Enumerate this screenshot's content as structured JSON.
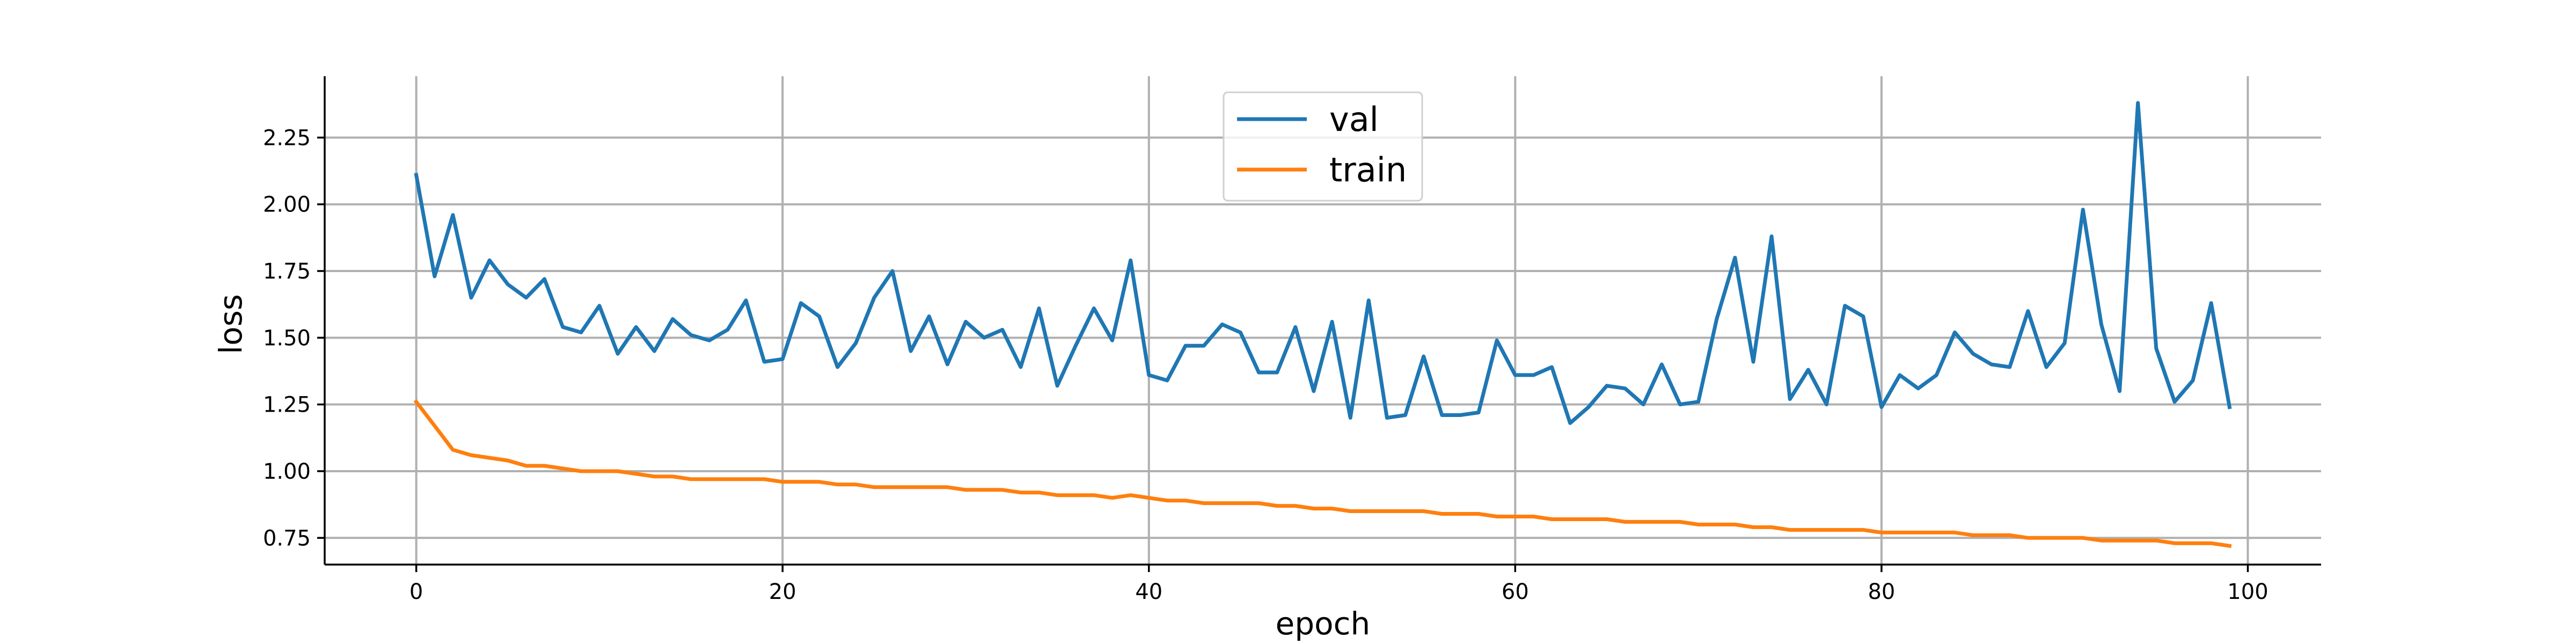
{
  "chart_data": {
    "type": "line",
    "title": "",
    "xlabel": "epoch",
    "ylabel": "loss",
    "xlim": [
      -5,
      104
    ],
    "ylim": [
      0.65,
      2.48
    ],
    "xticks": [
      0,
      20,
      40,
      60,
      80,
      100
    ],
    "xtick_labels": [
      "0",
      "20",
      "40",
      "60",
      "80",
      "100"
    ],
    "yticks": [
      0.75,
      1.0,
      1.25,
      1.5,
      1.75,
      2.0,
      2.25
    ],
    "ytick_labels": [
      "0.75",
      "1.00",
      "1.25",
      "1.50",
      "1.75",
      "2.00",
      "2.25"
    ],
    "grid": true,
    "legend_position": "top-center",
    "series": [
      {
        "name": "val",
        "color": "#1f77b4",
        "x": [
          0,
          1,
          2,
          3,
          4,
          5,
          6,
          7,
          8,
          9,
          10,
          11,
          12,
          13,
          14,
          15,
          16,
          17,
          18,
          19,
          20,
          21,
          22,
          23,
          24,
          25,
          26,
          27,
          28,
          29,
          30,
          31,
          32,
          33,
          34,
          35,
          36,
          37,
          38,
          39,
          40,
          41,
          42,
          43,
          44,
          45,
          46,
          47,
          48,
          49,
          50,
          51,
          52,
          53,
          54,
          55,
          56,
          57,
          58,
          59,
          60,
          61,
          62,
          63,
          64,
          65,
          66,
          67,
          68,
          69,
          70,
          71,
          72,
          73,
          74,
          75,
          76,
          77,
          78,
          79,
          80,
          81,
          82,
          83,
          84,
          85,
          86,
          87,
          88,
          89,
          90,
          91,
          92,
          93,
          94,
          95,
          96,
          97,
          98,
          99
        ],
        "values": [
          2.11,
          1.73,
          1.96,
          1.65,
          1.79,
          1.7,
          1.65,
          1.72,
          1.54,
          1.52,
          1.62,
          1.44,
          1.54,
          1.45,
          1.57,
          1.51,
          1.49,
          1.53,
          1.64,
          1.41,
          1.42,
          1.63,
          1.58,
          1.39,
          1.48,
          1.65,
          1.75,
          1.45,
          1.58,
          1.4,
          1.56,
          1.5,
          1.53,
          1.39,
          1.61,
          1.32,
          1.47,
          1.61,
          1.49,
          1.79,
          1.36,
          1.34,
          1.47,
          1.47,
          1.55,
          1.52,
          1.37,
          1.37,
          1.54,
          1.3,
          1.56,
          1.2,
          1.64,
          1.2,
          1.21,
          1.43,
          1.21,
          1.21,
          1.22,
          1.49,
          1.36,
          1.36,
          1.39,
          1.18,
          1.24,
          1.32,
          1.31,
          1.25,
          1.4,
          1.25,
          1.26,
          1.57,
          1.8,
          1.41,
          1.88,
          1.27,
          1.38,
          1.25,
          1.62,
          1.58,
          1.24,
          1.36,
          1.31,
          1.36,
          1.52,
          1.44,
          1.4,
          1.39,
          1.6,
          1.39,
          1.48,
          1.98,
          1.55,
          1.3,
          2.38,
          1.46,
          1.26,
          1.34,
          1.63,
          1.24
        ]
      },
      {
        "name": "train",
        "color": "#ff7f0e",
        "x": [
          0,
          1,
          2,
          3,
          4,
          5,
          6,
          7,
          8,
          9,
          10,
          11,
          12,
          13,
          14,
          15,
          16,
          17,
          18,
          19,
          20,
          21,
          22,
          23,
          24,
          25,
          26,
          27,
          28,
          29,
          30,
          31,
          32,
          33,
          34,
          35,
          36,
          37,
          38,
          39,
          40,
          41,
          42,
          43,
          44,
          45,
          46,
          47,
          48,
          49,
          50,
          51,
          52,
          53,
          54,
          55,
          56,
          57,
          58,
          59,
          60,
          61,
          62,
          63,
          64,
          65,
          66,
          67,
          68,
          69,
          70,
          71,
          72,
          73,
          74,
          75,
          76,
          77,
          78,
          79,
          80,
          81,
          82,
          83,
          84,
          85,
          86,
          87,
          88,
          89,
          90,
          91,
          92,
          93,
          94,
          95,
          96,
          97,
          98,
          99
        ],
        "values": [
          1.26,
          1.17,
          1.08,
          1.06,
          1.05,
          1.04,
          1.02,
          1.02,
          1.01,
          1.0,
          1.0,
          1.0,
          0.99,
          0.98,
          0.98,
          0.97,
          0.97,
          0.97,
          0.97,
          0.97,
          0.96,
          0.96,
          0.96,
          0.95,
          0.95,
          0.94,
          0.94,
          0.94,
          0.94,
          0.94,
          0.93,
          0.93,
          0.93,
          0.92,
          0.92,
          0.91,
          0.91,
          0.91,
          0.9,
          0.91,
          0.9,
          0.89,
          0.89,
          0.88,
          0.88,
          0.88,
          0.88,
          0.87,
          0.87,
          0.86,
          0.86,
          0.85,
          0.85,
          0.85,
          0.85,
          0.85,
          0.84,
          0.84,
          0.84,
          0.83,
          0.83,
          0.83,
          0.82,
          0.82,
          0.82,
          0.82,
          0.81,
          0.81,
          0.81,
          0.81,
          0.8,
          0.8,
          0.8,
          0.79,
          0.79,
          0.78,
          0.78,
          0.78,
          0.78,
          0.78,
          0.77,
          0.77,
          0.77,
          0.77,
          0.77,
          0.76,
          0.76,
          0.76,
          0.75,
          0.75,
          0.75,
          0.75,
          0.74,
          0.74,
          0.74,
          0.74,
          0.73,
          0.73,
          0.73,
          0.72
        ]
      }
    ]
  }
}
